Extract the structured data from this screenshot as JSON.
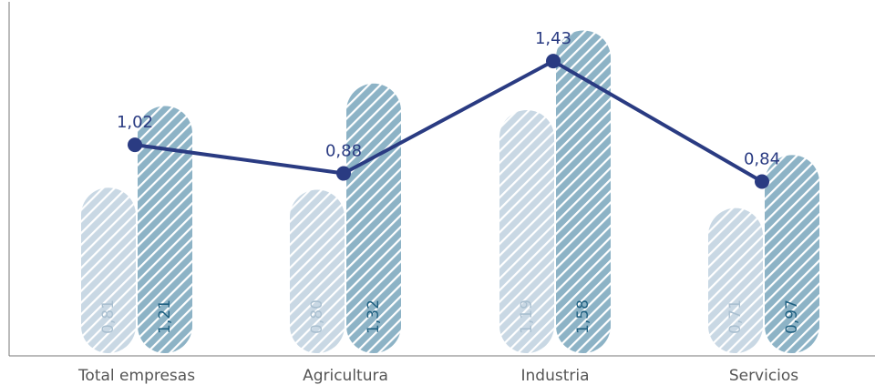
{
  "chart_data": {
    "type": "bar",
    "categories": [
      "Total empresas",
      "Agricultura",
      "Industria",
      "Servicios"
    ],
    "series": [
      {
        "values": [
          0.81,
          0.8,
          1.19,
          0.71
        ],
        "labels": [
          "0,81",
          "0,80",
          "1,19",
          "0,71"
        ],
        "color": "#c9d8e4"
      },
      {
        "values": [
          1.21,
          1.32,
          1.58,
          0.97
        ],
        "labels": [
          "1,21",
          "1,32",
          "1,58",
          "0,97"
        ],
        "color": "#8db3c6"
      }
    ],
    "line": {
      "values": [
        1.02,
        0.88,
        1.43,
        0.84
      ],
      "labels": [
        "1,02",
        "0,88",
        "1,43",
        "0,84"
      ],
      "color": "#2a3b82"
    },
    "ylim": [
      0,
      1.64
    ],
    "grid": false,
    "legend": "none",
    "colors": {
      "axis": "#777777",
      "category_text": "#555555",
      "bar_label_light": "#a9bfd0",
      "bar_label_dark": "#1e5f80"
    }
  }
}
